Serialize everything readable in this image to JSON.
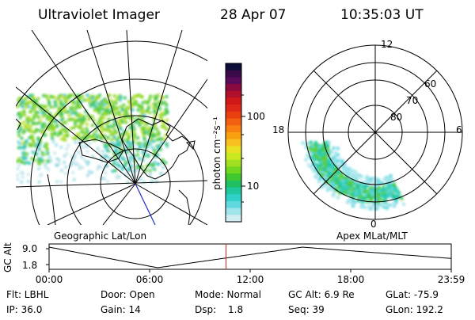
{
  "header": {
    "title": "Ultraviolet Imager",
    "date": "28 Apr 07",
    "time": "10:35:03 UT"
  },
  "colorbar": {
    "label": "photon cm⁻²s⁻¹",
    "ticks": [
      "100",
      "10"
    ],
    "colors": [
      "#0d0d3a",
      "#3a0a4a",
      "#5a0a5a",
      "#8a0a40",
      "#b0102a",
      "#d01818",
      "#e02818",
      "#e84010",
      "#f06010",
      "#f88010",
      "#f8a010",
      "#f8c020",
      "#e8e020",
      "#c8e820",
      "#a0e020",
      "#70d820",
      "#40c830",
      "#20c060",
      "#20c8a0",
      "#30d0c8",
      "#60d8e0",
      "#a0e4ec",
      "#d0eef2"
    ]
  },
  "panels": {
    "left_label": "Geographic Lat/Lon",
    "right_label": "Apex MLat/MLT",
    "polar": {
      "mlt_labels": [
        "12",
        "18",
        "6",
        "0"
      ],
      "mlat_labels": [
        "60",
        "70",
        "80"
      ]
    }
  },
  "altitude_plot": {
    "ylabel": "GC Alt",
    "ytick_top": "9.0",
    "ytick_bottom": "1.8",
    "xticks": [
      "00:00",
      "06:00",
      "12:00",
      "18:00",
      "23:59"
    ],
    "current_time_fraction": 0.44
  },
  "info": {
    "row1": [
      "Flt: LBHL",
      "Door: Open",
      "Mode: Normal",
      "GC Alt: 6.9 Re",
      "GLat: -75.9"
    ],
    "row2": [
      "IP: 36.0",
      "Gain: 14",
      "Dsp:",
      "1.8",
      "Seq: 39",
      "GLon: 192.2"
    ]
  }
}
